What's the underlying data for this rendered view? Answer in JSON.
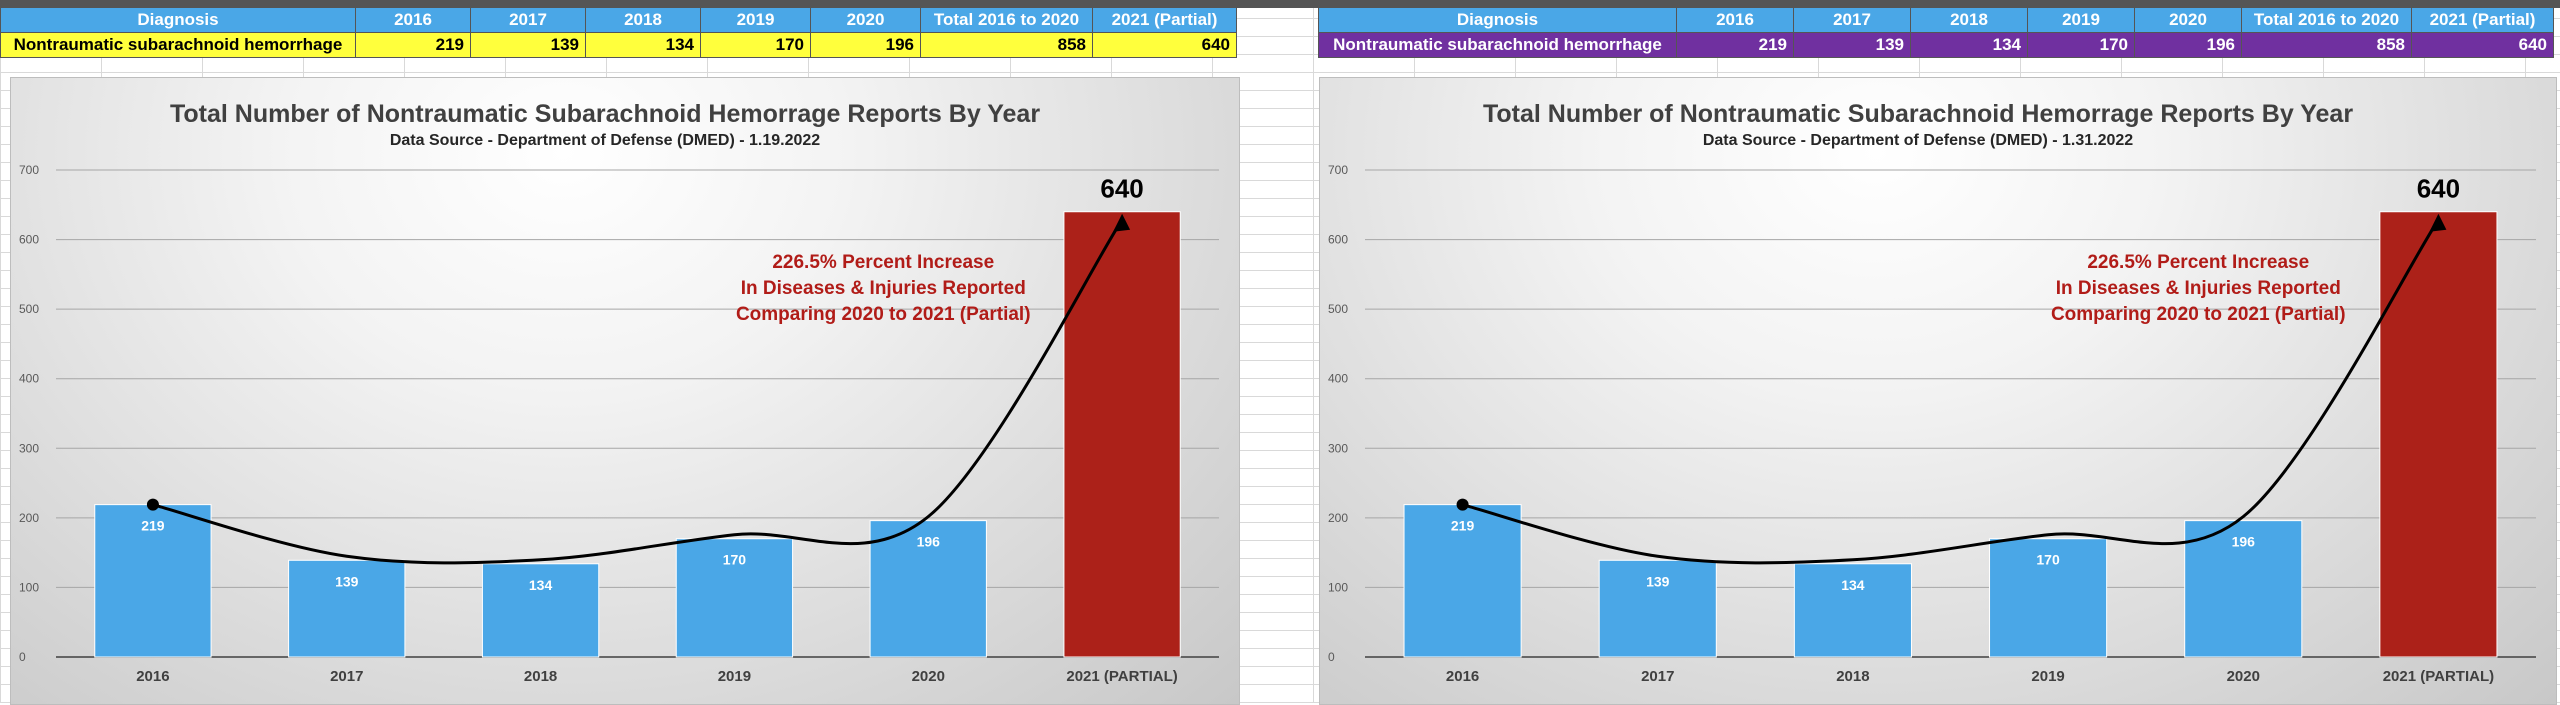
{
  "colors": {
    "header_bg": "#4aa7e7",
    "left_row_bg": "#ffff3c",
    "right_row_bg": "#7030a0",
    "bar_blue": "#4aa7e7",
    "bar_red": "#ac2119",
    "annotation_red": "#b11c18",
    "curve": "#000000"
  },
  "tables": [
    {
      "headers": [
        "Diagnosis",
        "2016",
        "2017",
        "2018",
        "2019",
        "2020",
        "Total 2016 to 2020",
        "2021 (Partial)"
      ],
      "row": [
        "Nontraumatic subarachnoid hemorrhage",
        "219",
        "139",
        "134",
        "170",
        "196",
        "858",
        "640"
      ]
    },
    {
      "headers": [
        "Diagnosis",
        "2016",
        "2017",
        "2018",
        "2019",
        "2020",
        "Total 2016 to 2020",
        "2021 (Partial)"
      ],
      "row": [
        "Nontraumatic subarachnoid hemorrhage",
        "219",
        "139",
        "134",
        "170",
        "196",
        "858",
        "640"
      ]
    }
  ],
  "chart_data": [
    {
      "type": "bar",
      "title": "Total Number of Nontraumatic Subarachnoid Hemorrage Reports By Year",
      "subtitle": "Data Source - Department of Defense (DMED) - 1.19.2022",
      "categories": [
        "2016",
        "2017",
        "2018",
        "2019",
        "2020",
        "2021 (PARTIAL)"
      ],
      "values": [
        219,
        139,
        134,
        170,
        196,
        640
      ],
      "data_labels": [
        "219",
        "139",
        "134",
        "170",
        "196",
        "640"
      ],
      "ylim": [
        0,
        700
      ],
      "yticks": [
        "0",
        "100",
        "200",
        "300",
        "400",
        "500",
        "600",
        "700"
      ],
      "grid": true,
      "annotation": [
        "226.5% Percent Increase",
        "In Diseases & Injuries Reported",
        "Comparing 2020 to 2021 (Partial)"
      ]
    },
    {
      "type": "bar",
      "title": "Total Number of Nontraumatic Subarachnoid Hemorrage Reports By Year",
      "subtitle": "Data Source - Department of Defense (DMED) - 1.31.2022",
      "categories": [
        "2016",
        "2017",
        "2018",
        "2019",
        "2020",
        "2021 (PARTIAL)"
      ],
      "values": [
        219,
        139,
        134,
        170,
        196,
        640
      ],
      "data_labels": [
        "219",
        "139",
        "134",
        "170",
        "196",
        "640"
      ],
      "ylim": [
        0,
        700
      ],
      "yticks": [
        "0",
        "100",
        "200",
        "300",
        "400",
        "500",
        "600",
        "700"
      ],
      "grid": true,
      "annotation": [
        "226.5% Percent Increase",
        "In Diseases & Injuries Reported",
        "Comparing 2020 to 2021 (Partial)"
      ]
    }
  ]
}
